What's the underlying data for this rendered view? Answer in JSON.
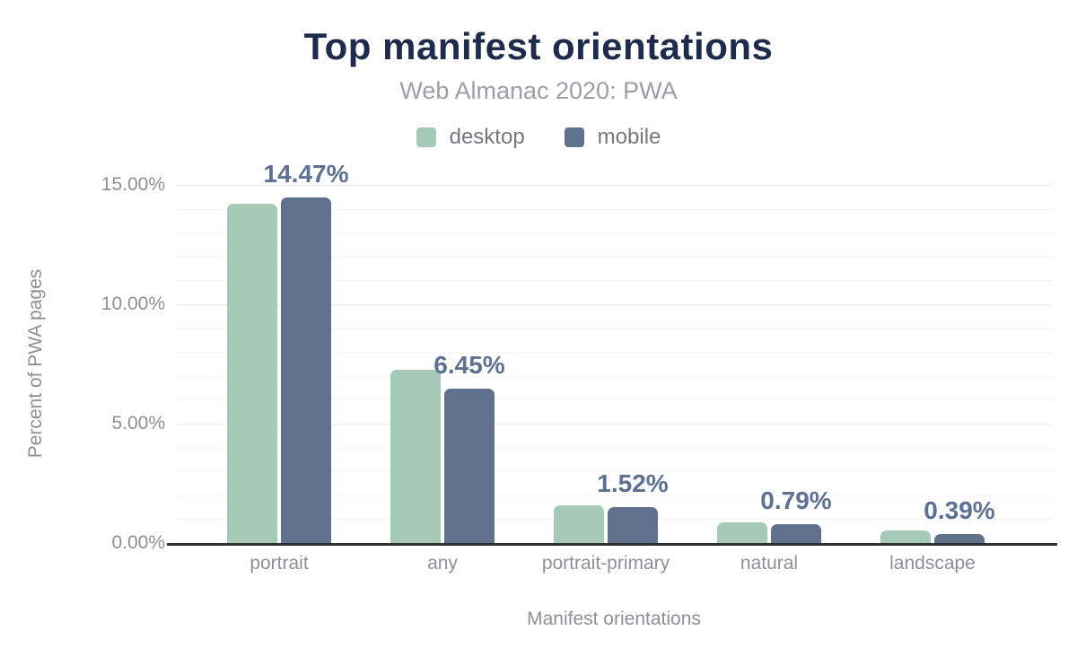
{
  "chart_data": {
    "type": "bar",
    "title": "Top manifest orientations",
    "subtitle": "Web Almanac 2020: PWA",
    "xlabel": "Manifest orientations",
    "ylabel": "Percent of PWA pages",
    "categories": [
      "portrait",
      "any",
      "portrait-primary",
      "natural",
      "landscape"
    ],
    "series": [
      {
        "name": "desktop",
        "color": "#a6c9b8",
        "values": [
          14.22,
          7.25,
          1.57,
          0.86,
          0.53
        ]
      },
      {
        "name": "mobile",
        "color": "#5f718d",
        "values": [
          14.47,
          6.45,
          1.52,
          0.79,
          0.39
        ]
      }
    ],
    "data_labels": [
      "14.47%",
      "6.45%",
      "1.52%",
      "0.79%",
      "0.39%"
    ],
    "data_labels_series": "mobile",
    "ylim": [
      0,
      15
    ],
    "yticks": [
      0,
      5,
      10,
      15
    ],
    "ytick_labels": [
      "0.00%",
      "5.00%",
      "10.00%",
      "15.00%"
    ],
    "minor_grid_step_pct": 1,
    "grid": true,
    "legend_position": "top"
  },
  "colors": {
    "background": "#ffffff",
    "title": "#1e2b4d",
    "subtitle": "#9aa0a5",
    "legend_text": "#75797e",
    "axis_text": "#8d9095",
    "data_label": "#5e7192",
    "grid_major": "#e9e9e9",
    "grid_minor": "#f4f4f4",
    "axis_line": "#2f2f2f"
  }
}
